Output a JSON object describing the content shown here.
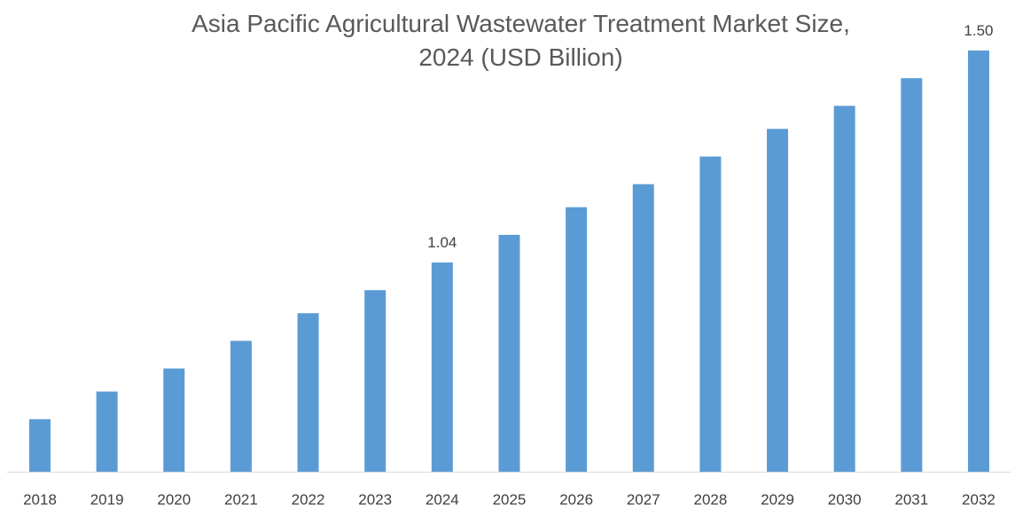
{
  "chart_data": {
    "type": "bar",
    "title_line1": "Asia Pacific Agricultural Wastewater Treatment Market Size,",
    "title_line2": "2024 (USD Billion)",
    "xlabel": "",
    "ylabel": "",
    "categories": [
      "2018",
      "2019",
      "2020",
      "2021",
      "2022",
      "2023",
      "2024",
      "2025",
      "2026",
      "2027",
      "2028",
      "2029",
      "2030",
      "2031",
      "2032"
    ],
    "values": [
      0.7,
      0.76,
      0.81,
      0.87,
      0.93,
      0.98,
      1.04,
      1.1,
      1.16,
      1.21,
      1.27,
      1.33,
      1.38,
      1.44,
      1.5
    ],
    "data_labels": {
      "2024": "1.04",
      "2032": "1.50"
    },
    "ylim": [
      0.586,
      1.5
    ],
    "grid": false,
    "legend": "none",
    "bar_color": "#5b9bd5",
    "axis_color": "#d9d9d9"
  }
}
